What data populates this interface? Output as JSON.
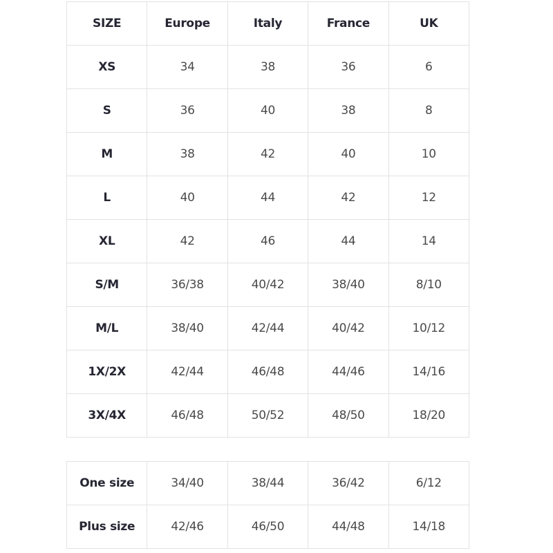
{
  "size_table": {
    "headers": [
      "SIZE",
      "Europe",
      "Italy",
      "France",
      "UK"
    ],
    "rows": [
      [
        "XS",
        "34",
        "38",
        "36",
        "6"
      ],
      [
        "S",
        "36",
        "40",
        "38",
        "8"
      ],
      [
        "M",
        "38",
        "42",
        "40",
        "10"
      ],
      [
        "L",
        "40",
        "44",
        "42",
        "12"
      ],
      [
        "XL",
        "42",
        "46",
        "44",
        "14"
      ],
      [
        "S/M",
        "36/38",
        "40/42",
        "38/40",
        "8/10"
      ],
      [
        "M/L",
        "38/40",
        "42/44",
        "40/42",
        "10/12"
      ],
      [
        "1X/2X",
        "42/44",
        "46/48",
        "44/46",
        "14/16"
      ],
      [
        "3X/4X",
        "46/48",
        "50/52",
        "48/50",
        "18/20"
      ]
    ]
  },
  "special_table": {
    "rows": [
      [
        "One size",
        "34/40",
        "38/44",
        "36/42",
        "6/12"
      ],
      [
        "Plus size",
        "42/46",
        "46/50",
        "44/48",
        "14/18"
      ]
    ]
  },
  "colors": {
    "border": "#e2e2e2",
    "header_text": "#262633",
    "cell_text": "#4a4a4a"
  }
}
